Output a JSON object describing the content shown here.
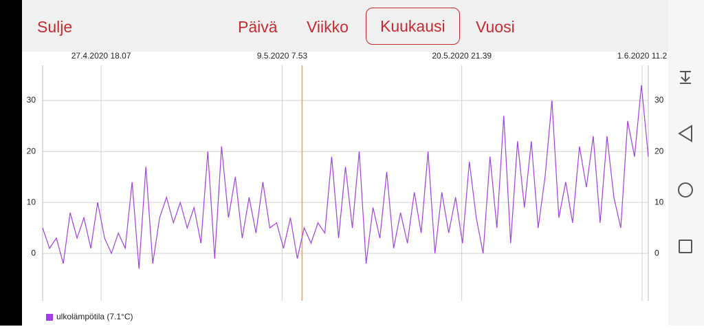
{
  "toolbar": {
    "close": "Sulje",
    "tabs": [
      "Päivä",
      "Viikko",
      "Kuukausi",
      "Vuosi"
    ],
    "selected_tab": 2
  },
  "chart_data": {
    "type": "line",
    "series": [
      {
        "name": "ulkolämpötila (7.1°C)",
        "color": "#a33ee6",
        "values": [
          5,
          1,
          3,
          -2,
          8,
          3,
          7,
          1,
          10,
          3,
          0,
          4,
          1,
          14,
          -3,
          17,
          -2,
          7,
          11,
          6,
          10,
          5,
          9,
          2,
          20,
          -1,
          21,
          7,
          15,
          3,
          11,
          4,
          14,
          5,
          6,
          1,
          7,
          -1,
          5,
          2,
          6,
          4,
          19,
          3,
          17,
          5,
          20,
          -2,
          9,
          3,
          16,
          1,
          8,
          2,
          12,
          4,
          20,
          0,
          12,
          4,
          11,
          2,
          18,
          7,
          0,
          19,
          5,
          27,
          2,
          22,
          9,
          22,
          5,
          15,
          30,
          7,
          14,
          6,
          21,
          13,
          23,
          6,
          23,
          11,
          5,
          26,
          19,
          33,
          19
        ]
      }
    ],
    "xlim": [
      0,
      88
    ],
    "xticks": [
      {
        "value": 8.5,
        "label": "27.4.2020 18.07"
      },
      {
        "value": 34.8,
        "label": "9.5.2020 7.53"
      },
      {
        "value": 60.9,
        "label": "20.5.2020 21.39"
      },
      {
        "value": 87.1,
        "label": "1.6.2020 11.2"
      }
    ],
    "cursor_x": 37.7,
    "cursor_color": "#f5a03c",
    "ylim": [
      -9.3,
      36.9
    ],
    "yticks": [
      0,
      10,
      20,
      30
    ],
    "grid": true
  }
}
